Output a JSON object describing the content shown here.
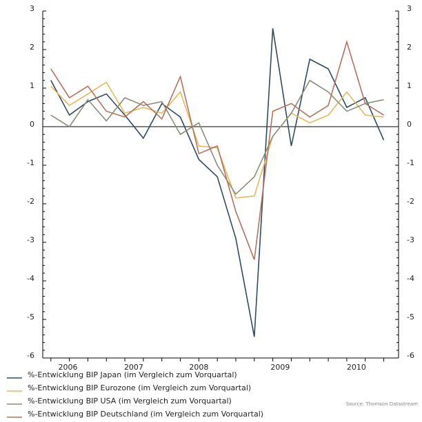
{
  "chart_data": {
    "type": "line",
    "x": [
      2006,
      2006.25,
      2006.5,
      2006.75,
      2007,
      2007.25,
      2007.5,
      2007.75,
      2008,
      2008.25,
      2008.5,
      2008.75,
      2009,
      2009.25,
      2009.5,
      2009.75,
      2010,
      2010.25,
      2010.5
    ],
    "xlim": [
      2005.89,
      2010.7
    ],
    "xticks": [
      {
        "value": 2006.23,
        "label": "2006"
      },
      {
        "value": 2007.12,
        "label": "2007"
      },
      {
        "value": 2008.0,
        "label": "2008"
      },
      {
        "value": 2009.1,
        "label": "2009"
      },
      {
        "value": 2010.13,
        "label": "2010"
      }
    ],
    "ylim": [
      -6,
      3
    ],
    "yticks": [
      -6,
      -5,
      -4,
      -3,
      -2,
      -1,
      0,
      1,
      2,
      3
    ],
    "series": [
      {
        "name": "%-Entwicklung BIP Japan (im Vergleich zum Vorquartal)",
        "color": "#2e4a62",
        "values": [
          1.2,
          0.3,
          0.65,
          0.85,
          0.3,
          -0.3,
          0.6,
          0.25,
          -0.85,
          -1.3,
          -2.9,
          -5.45,
          2.55,
          -0.5,
          1.75,
          1.5,
          0.5,
          0.75,
          -0.35
        ]
      },
      {
        "name": "%-Entwicklung BIP Eurozone (im Vergleich zum Vorquartal)",
        "color": "#e3b95c",
        "values": [
          1.05,
          0.55,
          0.85,
          1.15,
          0.35,
          0.5,
          0.35,
          0.9,
          -0.5,
          -0.55,
          -1.85,
          -1.8,
          -0.25,
          0.35,
          0.1,
          0.3,
          0.9,
          0.3,
          0.25
        ]
      },
      {
        "name": "%-Entwicklung BIP USA (im Vergleich zum Vorquartal)",
        "color": "#8c8c7a",
        "values": [
          0.3,
          0.0,
          0.7,
          0.15,
          0.75,
          0.55,
          0.65,
          -0.2,
          0.1,
          -1.0,
          -1.75,
          -1.3,
          -0.25,
          0.35,
          1.2,
          0.9,
          0.4,
          0.6,
          0.7
        ]
      },
      {
        "name": "%-Entwicklung BIP Deutschland (im Vergleich zum Vorquartal)",
        "color": "#b5705e",
        "values": [
          1.5,
          0.75,
          1.05,
          0.4,
          0.25,
          0.65,
          0.2,
          1.3,
          -0.7,
          -0.5,
          -2.2,
          -3.45,
          0.4,
          0.6,
          0.25,
          0.55,
          2.2,
          0.6,
          0.3
        ]
      }
    ],
    "source": "Source: Thomson Datastream"
  }
}
